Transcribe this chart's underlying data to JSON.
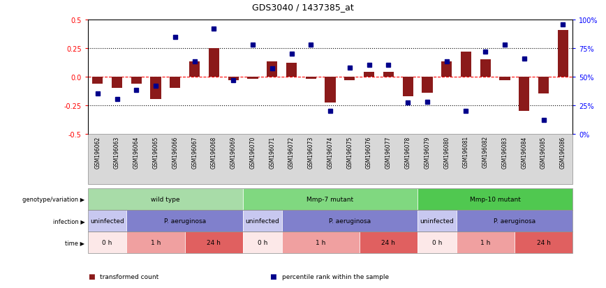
{
  "title": "GDS3040 / 1437385_at",
  "samples": [
    "GSM196062",
    "GSM196063",
    "GSM196064",
    "GSM196065",
    "GSM196066",
    "GSM196067",
    "GSM196068",
    "GSM196069",
    "GSM196070",
    "GSM196071",
    "GSM196072",
    "GSM196073",
    "GSM196074",
    "GSM196075",
    "GSM196076",
    "GSM196077",
    "GSM196078",
    "GSM196079",
    "GSM196080",
    "GSM196081",
    "GSM196082",
    "GSM196083",
    "GSM196084",
    "GSM196085",
    "GSM196086"
  ],
  "bar_values": [
    -0.06,
    -0.1,
    -0.06,
    -0.2,
    -0.1,
    0.13,
    0.25,
    -0.03,
    -0.02,
    0.13,
    0.12,
    -0.02,
    -0.23,
    -0.03,
    0.04,
    0.04,
    -0.17,
    -0.14,
    0.13,
    0.22,
    0.15,
    -0.03,
    -0.3,
    -0.15,
    0.41
  ],
  "dot_values": [
    35,
    30,
    38,
    42,
    85,
    63,
    92,
    47,
    78,
    57,
    70,
    78,
    20,
    58,
    60,
    60,
    27,
    28,
    63,
    20,
    72,
    78,
    66,
    12,
    96
  ],
  "ylim_left": [
    -0.5,
    0.5
  ],
  "ylim_right": [
    0,
    100
  ],
  "yticks_left": [
    -0.5,
    -0.25,
    0.0,
    0.25,
    0.5
  ],
  "yticks_right": [
    0,
    25,
    50,
    75,
    100
  ],
  "ytick_labels_right": [
    "0%",
    "25%",
    "50%",
    "75%",
    "100%"
  ],
  "bar_color": "#8B1A1A",
  "dot_color": "#00008B",
  "genotype_groups": [
    {
      "label": "wild type",
      "start": 0,
      "end": 7,
      "color": "#a8dca8"
    },
    {
      "label": "Mmp-7 mutant",
      "start": 8,
      "end": 16,
      "color": "#80d880"
    },
    {
      "label": "Mmp-10 mutant",
      "start": 17,
      "end": 24,
      "color": "#50c850"
    }
  ],
  "infection_groups": [
    {
      "label": "uninfected",
      "start": 0,
      "end": 1,
      "color": "#c8c8f0"
    },
    {
      "label": "P. aeruginosa",
      "start": 2,
      "end": 7,
      "color": "#8080cc"
    },
    {
      "label": "uninfected",
      "start": 8,
      "end": 9,
      "color": "#c8c8f0"
    },
    {
      "label": "P. aeruginosa",
      "start": 10,
      "end": 16,
      "color": "#8080cc"
    },
    {
      "label": "uninfected",
      "start": 17,
      "end": 18,
      "color": "#c8c8f0"
    },
    {
      "label": "P. aeruginosa",
      "start": 19,
      "end": 24,
      "color": "#8080cc"
    }
  ],
  "time_groups": [
    {
      "label": "0 h",
      "start": 0,
      "end": 1,
      "color": "#fce8e8"
    },
    {
      "label": "1 h",
      "start": 2,
      "end": 4,
      "color": "#f0a0a0"
    },
    {
      "label": "24 h",
      "start": 5,
      "end": 7,
      "color": "#e06060"
    },
    {
      "label": "0 h",
      "start": 8,
      "end": 9,
      "color": "#fce8e8"
    },
    {
      "label": "1 h",
      "start": 10,
      "end": 13,
      "color": "#f0a0a0"
    },
    {
      "label": "24 h",
      "start": 14,
      "end": 16,
      "color": "#e06060"
    },
    {
      "label": "0 h",
      "start": 17,
      "end": 18,
      "color": "#fce8e8"
    },
    {
      "label": "1 h",
      "start": 19,
      "end": 21,
      "color": "#f0a0a0"
    },
    {
      "label": "24 h",
      "start": 22,
      "end": 24,
      "color": "#e06060"
    }
  ],
  "row_labels": [
    "genotype/variation",
    "infection",
    "time"
  ],
  "legend_items": [
    {
      "label": "transformed count",
      "color": "#8B1A1A"
    },
    {
      "label": "percentile rank within the sample",
      "color": "#00008B"
    }
  ],
  "sample_bg_color": "#d8d8d8",
  "fig_width": 8.68,
  "fig_height": 4.14,
  "dpi": 100
}
